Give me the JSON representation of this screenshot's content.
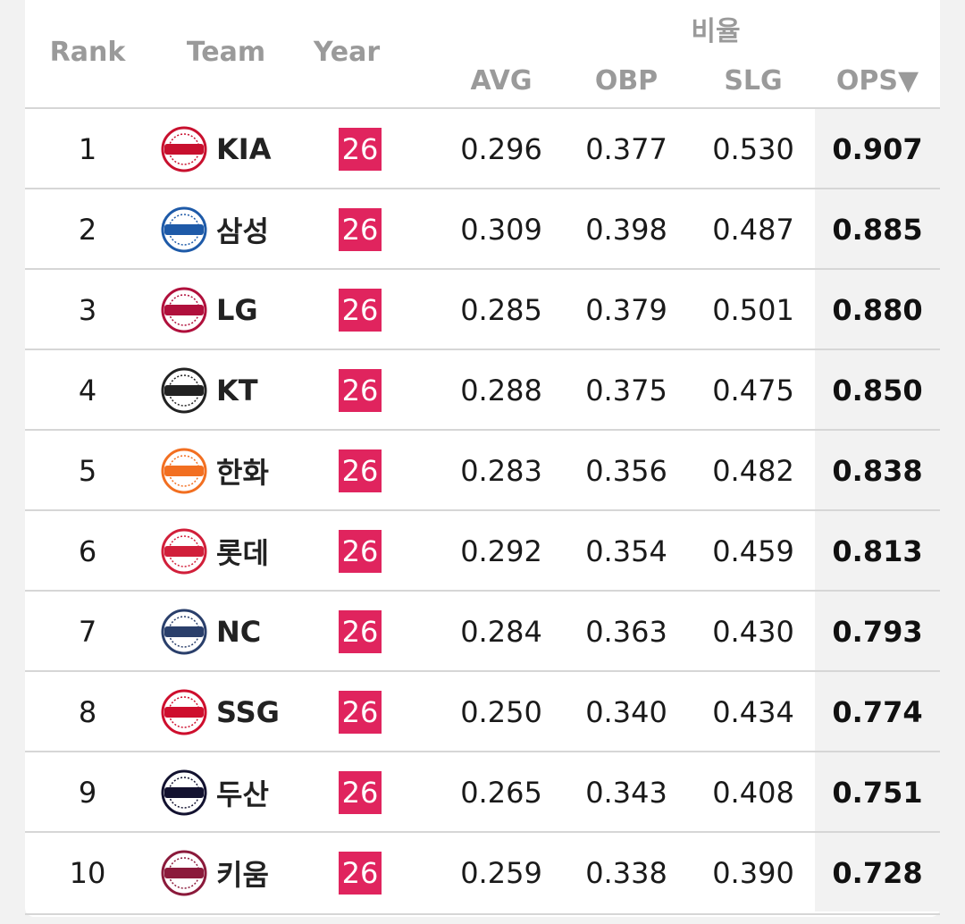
{
  "header": {
    "group_label": "비율",
    "rank": "Rank",
    "team": "Team",
    "year": "Year",
    "avg": "AVG",
    "obp": "OBP",
    "slg": "SLG",
    "ops": "OPS▼"
  },
  "colors": {
    "year_badge": "#e0245e",
    "ops_column_bg": "#f2f2f2"
  },
  "rows": [
    {
      "rank": "1",
      "team": "KIA",
      "logo": "tigers-logo",
      "logo_color": "#c8102e",
      "year": "26",
      "avg": "0.296",
      "obp": "0.377",
      "slg": "0.530",
      "ops": "0.907"
    },
    {
      "rank": "2",
      "team": "삼성",
      "logo": "lions-logo",
      "logo_color": "#1e5aa8",
      "year": "26",
      "avg": "0.309",
      "obp": "0.398",
      "slg": "0.487",
      "ops": "0.885"
    },
    {
      "rank": "3",
      "team": "LG",
      "logo": "twins-logo",
      "logo_color": "#b0103c",
      "year": "26",
      "avg": "0.285",
      "obp": "0.379",
      "slg": "0.501",
      "ops": "0.880"
    },
    {
      "rank": "4",
      "team": "KT",
      "logo": "kt-wiz-logo",
      "logo_color": "#222222",
      "year": "26",
      "avg": "0.288",
      "obp": "0.375",
      "slg": "0.475",
      "ops": "0.850"
    },
    {
      "rank": "5",
      "team": "한화",
      "logo": "eagles-logo",
      "logo_color": "#f26f21",
      "year": "26",
      "avg": "0.283",
      "obp": "0.356",
      "slg": "0.482",
      "ops": "0.838"
    },
    {
      "rank": "6",
      "team": "롯데",
      "logo": "giants-logo",
      "logo_color": "#d11f3a",
      "year": "26",
      "avg": "0.292",
      "obp": "0.354",
      "slg": "0.459",
      "ops": "0.813"
    },
    {
      "rank": "7",
      "team": "NC",
      "logo": "dinos-logo",
      "logo_color": "#2a3f6b",
      "year": "26",
      "avg": "0.284",
      "obp": "0.363",
      "slg": "0.430",
      "ops": "0.793"
    },
    {
      "rank": "8",
      "team": "SSG",
      "logo": "landers-logo",
      "logo_color": "#ce0e2d",
      "year": "26",
      "avg": "0.250",
      "obp": "0.340",
      "slg": "0.434",
      "ops": "0.774"
    },
    {
      "rank": "9",
      "team": "두산",
      "logo": "bears-logo",
      "logo_color": "#131230",
      "year": "26",
      "avg": "0.265",
      "obp": "0.343",
      "slg": "0.408",
      "ops": "0.751"
    },
    {
      "rank": "10",
      "team": "키움",
      "logo": "kiwoom-logo",
      "logo_color": "#8b1a3b",
      "year": "26",
      "avg": "0.259",
      "obp": "0.338",
      "slg": "0.390",
      "ops": "0.728"
    }
  ]
}
